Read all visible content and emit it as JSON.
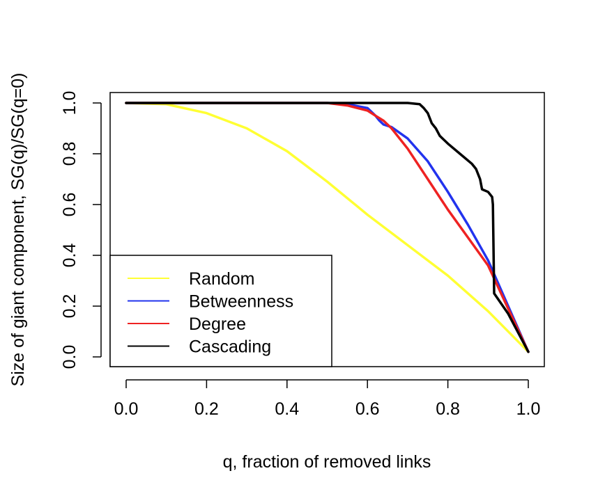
{
  "chart_data": {
    "type": "line",
    "title": "",
    "xlabel": "q, fraction of removed links",
    "ylabel": "Size of giant component, SG(q)/SG(q=0)",
    "xlim": [
      0.0,
      1.0
    ],
    "ylim": [
      0.0,
      1.0
    ],
    "xticks": [
      "0.0",
      "0.2",
      "0.4",
      "0.6",
      "0.8",
      "1.0"
    ],
    "yticks": [
      "0.0",
      "0.2",
      "0.4",
      "0.6",
      "0.8",
      "1.0"
    ],
    "grid": false,
    "legend_position": "bottom-left",
    "series": [
      {
        "name": "Random",
        "color": "#ffff33",
        "x": [
          0.0,
          0.1,
          0.2,
          0.3,
          0.4,
          0.5,
          0.6,
          0.7,
          0.8,
          0.9,
          1.0
        ],
        "y": [
          1.0,
          0.995,
          0.96,
          0.9,
          0.81,
          0.69,
          0.56,
          0.44,
          0.32,
          0.18,
          0.02
        ]
      },
      {
        "name": "Betweenness",
        "color": "#2233ee",
        "x": [
          0.0,
          0.5,
          0.55,
          0.6,
          0.62,
          0.63,
          0.64,
          0.66,
          0.7,
          0.75,
          0.8,
          0.85,
          0.9,
          0.95,
          1.0
        ],
        "y": [
          1.0,
          1.0,
          0.995,
          0.98,
          0.95,
          0.93,
          0.915,
          0.905,
          0.86,
          0.77,
          0.65,
          0.52,
          0.38,
          0.2,
          0.02
        ]
      },
      {
        "name": "Degree",
        "color": "#ee2222",
        "x": [
          0.0,
          0.5,
          0.55,
          0.6,
          0.62,
          0.64,
          0.66,
          0.7,
          0.75,
          0.8,
          0.85,
          0.9,
          0.95,
          1.0
        ],
        "y": [
          1.0,
          1.0,
          0.99,
          0.97,
          0.95,
          0.93,
          0.9,
          0.82,
          0.7,
          0.58,
          0.47,
          0.36,
          0.19,
          0.02
        ]
      },
      {
        "name": "Cascading",
        "color": "#000000",
        "x": [
          0.0,
          0.7,
          0.73,
          0.74,
          0.75,
          0.76,
          0.77,
          0.78,
          0.8,
          0.83,
          0.86,
          0.87,
          0.88,
          0.885,
          0.9,
          0.91,
          0.912,
          0.915,
          0.95,
          1.0
        ],
        "y": [
          1.0,
          1.0,
          0.995,
          0.98,
          0.96,
          0.92,
          0.9,
          0.87,
          0.84,
          0.8,
          0.76,
          0.74,
          0.7,
          0.66,
          0.65,
          0.63,
          0.6,
          0.25,
          0.17,
          0.02
        ]
      }
    ]
  }
}
